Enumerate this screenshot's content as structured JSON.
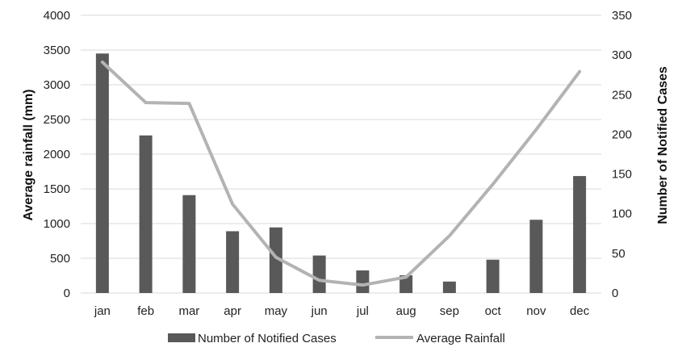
{
  "chart_data": {
    "type": "bar",
    "categories": [
      "jan",
      "feb",
      "mar",
      "apr",
      "may",
      "jun",
      "jul",
      "aug",
      "sep",
      "oct",
      "nov",
      "dec"
    ],
    "y_left": {
      "label": "Average rainfall (mm)",
      "ylim": [
        0,
        4000
      ],
      "ticks": [
        0,
        500,
        1000,
        1500,
        2000,
        2500,
        3000,
        3500,
        4000
      ]
    },
    "y_right": {
      "label": "Number of Notified Cases",
      "ylim": [
        0,
        350
      ],
      "ticks": [
        0,
        50,
        100,
        150,
        200,
        250,
        300,
        350
      ]
    },
    "series": [
      {
        "name": "Number of Notified Cases",
        "type": "bar",
        "axis": "left",
        "color": "#595959",
        "values": [
          3450,
          2270,
          1410,
          890,
          945,
          540,
          325,
          255,
          165,
          480,
          1055,
          1685
        ]
      },
      {
        "name": "Average Rainfall",
        "type": "line",
        "axis": "right",
        "color": "#b3b3b3",
        "values": [
          291,
          240,
          239,
          112,
          45,
          16,
          10,
          20,
          72,
          137,
          206,
          279
        ]
      }
    ],
    "grid": true,
    "legend": "bottom"
  }
}
